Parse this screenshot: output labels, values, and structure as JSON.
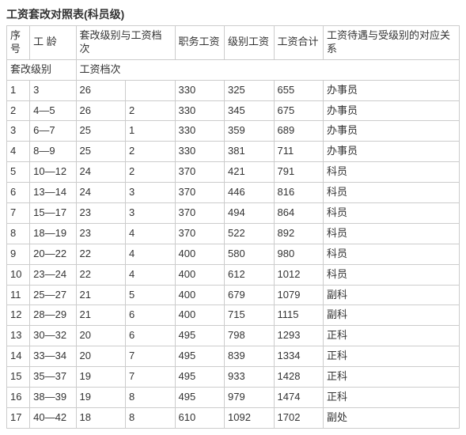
{
  "title": "工资套改对照表(科员级)",
  "headers": {
    "seq": "序号",
    "worklen": "工 龄",
    "reform_level_grade": "套改级别与工资档次",
    "duty_salary": "职务工资",
    "level_salary": "级别工资",
    "salary_total": "工资合计",
    "relation": "工资待遇与受级别的对应关系",
    "sub_reform_level": "套改级别",
    "sub_salary_grade": "工资档次"
  },
  "rows": [
    {
      "seq": "1",
      "worklen": "3",
      "reform_level": "26",
      "salary_grade": "",
      "duty_salary": "330",
      "level_salary": "325",
      "salary_total": "655",
      "relation": "办事员"
    },
    {
      "seq": "2",
      "worklen": "4—5",
      "reform_level": "26",
      "salary_grade": "2",
      "duty_salary": "330",
      "level_salary": "345",
      "salary_total": "675",
      "relation": "办事员"
    },
    {
      "seq": "3",
      "worklen": "6—7",
      "reform_level": "25",
      "salary_grade": "1",
      "duty_salary": "330",
      "level_salary": "359",
      "salary_total": "689",
      "relation": "办事员"
    },
    {
      "seq": "4",
      "worklen": "8—9",
      "reform_level": "25",
      "salary_grade": "2",
      "duty_salary": "330",
      "level_salary": "381",
      "salary_total": "711",
      "relation": "办事员"
    },
    {
      "seq": "5",
      "worklen": "10—12",
      "reform_level": "24",
      "salary_grade": "2",
      "duty_salary": "370",
      "level_salary": "421",
      "salary_total": "791",
      "relation": "科员"
    },
    {
      "seq": "6",
      "worklen": "13—14",
      "reform_level": "24",
      "salary_grade": "3",
      "duty_salary": "370",
      "level_salary": "446",
      "salary_total": "816",
      "relation": "科员"
    },
    {
      "seq": "7",
      "worklen": "15—17",
      "reform_level": "23",
      "salary_grade": "3",
      "duty_salary": "370",
      "level_salary": "494",
      "salary_total": "864",
      "relation": "科员"
    },
    {
      "seq": "8",
      "worklen": "18—19",
      "reform_level": "23",
      "salary_grade": "4",
      "duty_salary": "370",
      "level_salary": "522",
      "salary_total": "892",
      "relation": "科员"
    },
    {
      "seq": "9",
      "worklen": "20—22",
      "reform_level": "22",
      "salary_grade": "4",
      "duty_salary": "400",
      "level_salary": "580",
      "salary_total": "980",
      "relation": "科员"
    },
    {
      "seq": "10",
      "worklen": "23—24",
      "reform_level": "22",
      "salary_grade": "4",
      "duty_salary": "400",
      "level_salary": "612",
      "salary_total": "1012",
      "relation": "科员"
    },
    {
      "seq": "11",
      "worklen": "25—27",
      "reform_level": "21",
      "salary_grade": "5",
      "duty_salary": "400",
      "level_salary": "679",
      "salary_total": "1079",
      "relation": "副科"
    },
    {
      "seq": "12",
      "worklen": "28—29",
      "reform_level": "21",
      "salary_grade": "6",
      "duty_salary": "400",
      "level_salary": "715",
      "salary_total": "1115",
      "relation": "副科"
    },
    {
      "seq": "13",
      "worklen": "30—32",
      "reform_level": "20",
      "salary_grade": "6",
      "duty_salary": "495",
      "level_salary": "798",
      "salary_total": "1293",
      "relation": "正科"
    },
    {
      "seq": "14",
      "worklen": "33—34",
      "reform_level": "20",
      "salary_grade": "7",
      "duty_salary": "495",
      "level_salary": "839",
      "salary_total": "1334",
      "relation": "正科"
    },
    {
      "seq": "15",
      "worklen": "35—37",
      "reform_level": "19",
      "salary_grade": "7",
      "duty_salary": "495",
      "level_salary": "933",
      "salary_total": "1428",
      "relation": "正科"
    },
    {
      "seq": "16",
      "worklen": "38—39",
      "reform_level": "19",
      "salary_grade": "8",
      "duty_salary": "495",
      "level_salary": "979",
      "salary_total": "1474",
      "relation": "正科"
    },
    {
      "seq": "17",
      "worklen": "40—42",
      "reform_level": "18",
      "salary_grade": "8",
      "duty_salary": "610",
      "level_salary": "1092",
      "salary_total": "1702",
      "relation": "副处"
    }
  ]
}
